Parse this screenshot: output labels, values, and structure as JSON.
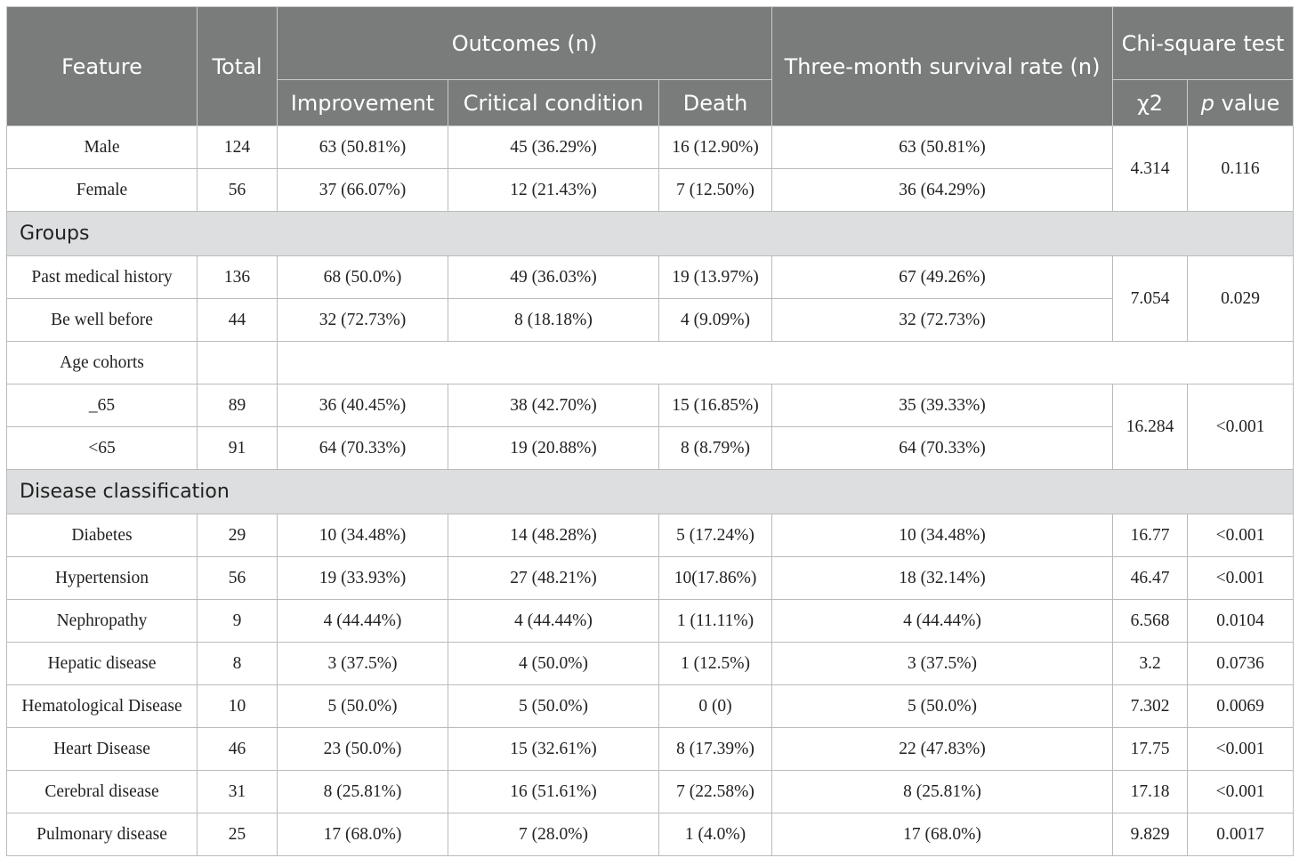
{
  "header": {
    "feature": "Feature",
    "total": "Total",
    "outcomes": "Outcomes (n)",
    "improvement": "Improvement",
    "critical": "Critical condition",
    "death": "Death",
    "survival": "Three-month survival rate (n)",
    "chi_test": "Chi-square test",
    "chi2": "χ2",
    "p_italic": "p",
    "p_rest": " value"
  },
  "sex": {
    "rows": [
      {
        "feature": "Male",
        "total": "124",
        "improvement": "63 (50.81%)",
        "critical": "45 (36.29%)",
        "death": "16 (12.90%)",
        "survival": "63 (50.81%)"
      },
      {
        "feature": "Female",
        "total": "56",
        "improvement": "37 (66.07%)",
        "critical": "12 (21.43%)",
        "death": "7 (12.50%)",
        "survival": "36 (64.29%)"
      }
    ],
    "chi2": "4.314",
    "p": "0.116"
  },
  "groups": {
    "label": "Groups",
    "rows": [
      {
        "feature": "Past medical history",
        "total": "136",
        "improvement": "68 (50.0%)",
        "critical": "49 (36.03%)",
        "death": "19 (13.97%)",
        "survival": "67 (49.26%)"
      },
      {
        "feature": "Be well before",
        "total": "44",
        "improvement": "32 (72.73%)",
        "critical": "8 (18.18%)",
        "death": "4 (9.09%)",
        "survival": "32 (72.73%)"
      }
    ],
    "chi2": "7.054",
    "p": "0.029"
  },
  "age": {
    "label": "Age cohorts",
    "rows": [
      {
        "feature": "_65",
        "total": "89",
        "improvement": "36 (40.45%)",
        "critical": "38 (42.70%)",
        "death": "15 (16.85%)",
        "survival": "35 (39.33%)"
      },
      {
        "feature": "<65",
        "total": "91",
        "improvement": "64 (70.33%)",
        "critical": "19 (20.88%)",
        "death": "8 (8.79%)",
        "survival": "64 (70.33%)"
      }
    ],
    "chi2": "16.284",
    "p": "<0.001"
  },
  "disease": {
    "label": "Disease classification",
    "rows": [
      {
        "feature": "Diabetes",
        "total": "29",
        "improvement": "10 (34.48%)",
        "critical": "14 (48.28%)",
        "death": "5 (17.24%)",
        "survival": "10 (34.48%)",
        "chi2": "16.77",
        "p": "<0.001"
      },
      {
        "feature": "Hypertension",
        "total": "56",
        "improvement": "19 (33.93%)",
        "critical": "27 (48.21%)",
        "death": "10(17.86%)",
        "survival": "18 (32.14%)",
        "chi2": "46.47",
        "p": "<0.001"
      },
      {
        "feature": "Nephropathy",
        "total": "9",
        "improvement": "4 (44.44%)",
        "critical": "4 (44.44%)",
        "death": "1 (11.11%)",
        "survival": "4 (44.44%)",
        "chi2": "6.568",
        "p": "0.0104"
      },
      {
        "feature": "Hepatic disease",
        "total": "8",
        "improvement": "3 (37.5%)",
        "critical": "4 (50.0%)",
        "death": "1 (12.5%)",
        "survival": "3 (37.5%)",
        "chi2": "3.2",
        "p": "0.0736"
      },
      {
        "feature": "Hematological Disease",
        "total": "10",
        "improvement": "5 (50.0%)",
        "critical": "5 (50.0%)",
        "death": "0 (0)",
        "survival": "5 (50.0%)",
        "chi2": "7.302",
        "p": "0.0069"
      },
      {
        "feature": "Heart Disease",
        "total": "46",
        "improvement": "23 (50.0%)",
        "critical": "15 (32.61%)",
        "death": "8 (17.39%)",
        "survival": "22 (47.83%)",
        "chi2": "17.75",
        "p": "<0.001"
      },
      {
        "feature": "Cerebral disease",
        "total": "31",
        "improvement": "8 (25.81%)",
        "critical": "16 (51.61%)",
        "death": "7 (22.58%)",
        "survival": "8 (25.81%)",
        "chi2": "17.18",
        "p": "<0.001"
      },
      {
        "feature": "Pulmonary disease",
        "total": "25",
        "improvement": "17 (68.0%)",
        "critical": "7 (28.0%)",
        "death": "1 (4.0%)",
        "survival": "17 (68.0%)",
        "chi2": "9.829",
        "p": "0.0017"
      }
    ]
  },
  "colors": {
    "header_bg": "#7a7c7b",
    "header_text": "#ffffff",
    "section_bg": "#dcdedf",
    "border": "#b9bbbb"
  }
}
